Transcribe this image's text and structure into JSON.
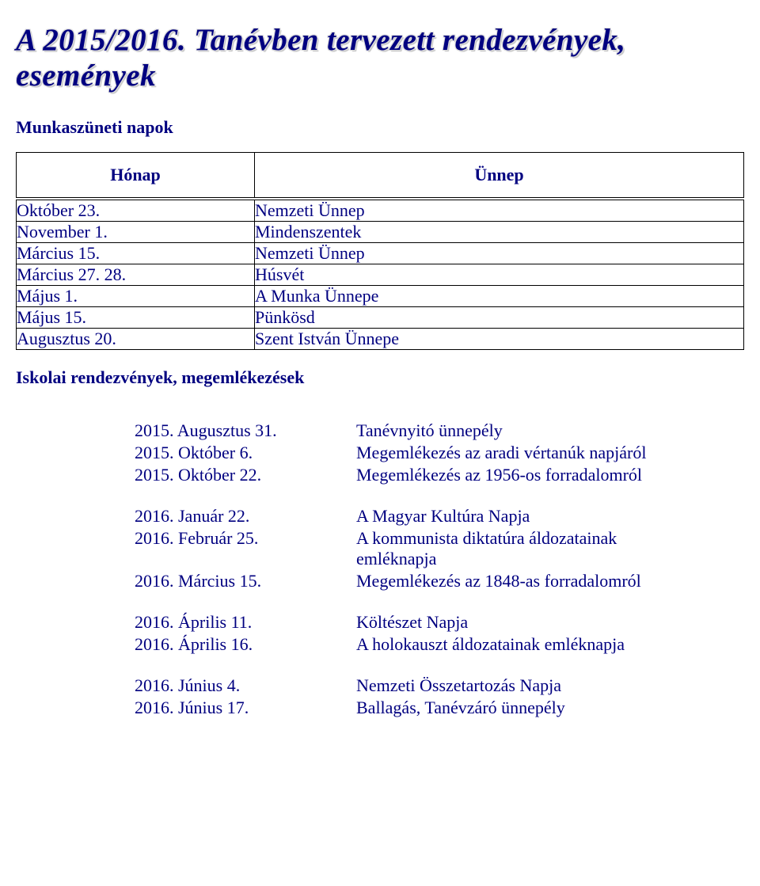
{
  "title": "A 2015/2016. Tanévben tervezett rendezvények, események",
  "section1_heading": "Munkaszüneti napok",
  "table1": {
    "header_left": "Hónap",
    "header_right": "Ünnep",
    "rows": [
      {
        "l": "Október 23.",
        "r": "Nemzeti Ünnep"
      },
      {
        "l": "November 1.",
        "r": "Mindenszentek"
      },
      {
        "l": "Március 15.",
        "r": "Nemzeti Ünnep"
      },
      {
        "l": "Március 27. 28.",
        "r": "Húsvét"
      },
      {
        "l": "Május 1.",
        "r": "A Munka Ünnepe"
      },
      {
        "l": "Május 15.",
        "r": "Pünkösd"
      },
      {
        "l": "Augusztus 20.",
        "r": "Szent István Ünnepe"
      }
    ]
  },
  "section2_heading": "Iskolai rendezvények, megemlékezések",
  "events": {
    "group1": [
      {
        "d": "2015. Augusztus 31.",
        "t": "Tanévnyitó ünnepély"
      },
      {
        "d": "2015. Október 6.",
        "t": "Megemlékezés az aradi vértanúk napjáról"
      },
      {
        "d": "2015. Október 22.",
        "t": "Megemlékezés az 1956-os forradalomról"
      }
    ],
    "group2": [
      {
        "d": "2016. Január 22.",
        "t": "A Magyar Kultúra Napja"
      },
      {
        "d": "2016. Február 25.",
        "t": "A kommunista diktatúra áldozatainak emléknapja"
      },
      {
        "d": "2016. Március 15.",
        "t": "Megemlékezés az 1848-as forradalomról"
      }
    ],
    "group3": [
      {
        "d": "2016. Április 11.",
        "t": "Költészet Napja"
      },
      {
        "d": "2016. Április 16.",
        "t": "A holokauszt áldozatainak emléknapja"
      }
    ],
    "group4": [
      {
        "d": "2016. Június 4.",
        "t": "Nemzeti Összetartozás Napja"
      },
      {
        "d": "2016. Június 17.",
        "t": "Ballagás, Tanévzáró ünnepély"
      }
    ]
  },
  "colors": {
    "text": "#000080",
    "background": "#ffffff",
    "border": "#000000"
  }
}
